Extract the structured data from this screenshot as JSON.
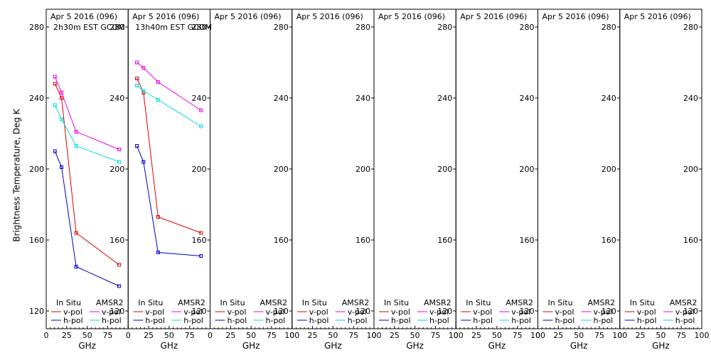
{
  "ylabel": "Brightness Temperature, Deg K",
  "xlabel": "GHz",
  "x_ticks": [
    0,
    25,
    50,
    75,
    100
  ],
  "y_ticks": [
    120,
    160,
    200,
    240,
    280
  ],
  "legend": {
    "insitu_header": "In Situ",
    "amsr2_header": "AMSR2",
    "vpol": "v-pol",
    "hpol": "h-pol",
    "colors": {
      "insitu_v": "#dd0000",
      "insitu_h": "#0000cc",
      "amsr2_v": "#ee00ee",
      "amsr2_h": "#00dddd"
    }
  },
  "chart_data": [
    {
      "type": "line",
      "title": "Apr 5 2016 (096)",
      "subtitle": "2h30m EST GCOM",
      "xlim": [
        0,
        100
      ],
      "ylim": [
        110,
        290
      ],
      "y_tick_labels": [
        "120",
        "160",
        "200",
        "240",
        "280"
      ],
      "x_tick_labels": [
        "0",
        "25",
        "50",
        "75",
        ""
      ],
      "grid": false,
      "x": [
        10.65,
        18.7,
        36.5,
        89.0
      ],
      "series": [
        {
          "name": "In Situ v-pol",
          "key": "insitu_v",
          "values": [
            248,
            240,
            164,
            146
          ]
        },
        {
          "name": "In Situ h-pol",
          "key": "insitu_h",
          "values": [
            210,
            201,
            145,
            134
          ]
        },
        {
          "name": "AMSR2 v-pol",
          "key": "amsr2_v",
          "values": [
            252,
            243,
            221,
            211
          ]
        },
        {
          "name": "AMSR2 h-pol",
          "key": "amsr2_h",
          "values": [
            236,
            228,
            213,
            204
          ]
        }
      ]
    },
    {
      "type": "line",
      "title": "Apr 5 2016 (096)",
      "subtitle": "13h40m EST GCOM",
      "xlim": [
        0,
        100
      ],
      "ylim": [
        110,
        290
      ],
      "y_tick_labels": [
        "120",
        "160",
        "200",
        "240",
        "280"
      ],
      "x_tick_labels": [
        "0",
        "25",
        "50",
        "75",
        ""
      ],
      "grid": false,
      "x": [
        10.65,
        18.7,
        36.5,
        89.0
      ],
      "series": [
        {
          "name": "In Situ v-pol",
          "key": "insitu_v",
          "values": [
            251,
            243,
            173,
            164
          ]
        },
        {
          "name": "In Situ h-pol",
          "key": "insitu_h",
          "values": [
            213,
            204,
            153,
            151
          ]
        },
        {
          "name": "AMSR2 v-pol",
          "key": "amsr2_v",
          "values": [
            260,
            257,
            249,
            233
          ]
        },
        {
          "name": "AMSR2 h-pol",
          "key": "amsr2_h",
          "values": [
            247,
            244,
            239,
            224
          ]
        }
      ]
    },
    {
      "type": "line",
      "title": "Apr 5 2016 (096)",
      "subtitle": "",
      "xlim": [
        0,
        100
      ],
      "ylim": [
        110,
        290
      ],
      "y_tick_labels": [
        "120",
        "160",
        "200",
        "240",
        "280"
      ],
      "x_tick_labels": [
        "0",
        "25",
        "50",
        "75",
        "100"
      ],
      "grid": false,
      "x": [],
      "series": []
    },
    {
      "type": "line",
      "title": "Apr 5 2016 (096)",
      "subtitle": "",
      "xlim": [
        0,
        100
      ],
      "ylim": [
        110,
        290
      ],
      "y_tick_labels": [
        "120",
        "160",
        "200",
        "240",
        "280"
      ],
      "x_tick_labels": [
        "0",
        "25",
        "50",
        "75",
        "100"
      ],
      "grid": false,
      "x": [],
      "series": []
    },
    {
      "type": "line",
      "title": "Apr 5 2016 (096)",
      "subtitle": "",
      "xlim": [
        0,
        100
      ],
      "ylim": [
        110,
        290
      ],
      "y_tick_labels": [
        "120",
        "160",
        "200",
        "240",
        "280"
      ],
      "x_tick_labels": [
        "0",
        "25",
        "50",
        "75",
        "100"
      ],
      "grid": false,
      "x": [],
      "series": []
    },
    {
      "type": "line",
      "title": "Apr 5 2016 (096)",
      "subtitle": "",
      "xlim": [
        0,
        100
      ],
      "ylim": [
        110,
        290
      ],
      "y_tick_labels": [
        "120",
        "160",
        "200",
        "240",
        "280"
      ],
      "x_tick_labels": [
        "0",
        "25",
        "50",
        "75",
        "100"
      ],
      "grid": false,
      "x": [],
      "series": []
    },
    {
      "type": "line",
      "title": "Apr 5 2016 (096)",
      "subtitle": "",
      "xlim": [
        0,
        100
      ],
      "ylim": [
        110,
        290
      ],
      "y_tick_labels": [
        "120",
        "160",
        "200",
        "240",
        "280"
      ],
      "x_tick_labels": [
        "0",
        "25",
        "50",
        "75",
        "100"
      ],
      "grid": false,
      "x": [],
      "series": []
    },
    {
      "type": "line",
      "title": "Apr 5 2016 (096)",
      "subtitle": "",
      "xlim": [
        0,
        100
      ],
      "ylim": [
        110,
        290
      ],
      "y_tick_labels": [
        "120",
        "160",
        "200",
        "240",
        "280"
      ],
      "x_tick_labels": [
        "0",
        "25",
        "50",
        "75",
        "100"
      ],
      "grid": false,
      "x": [],
      "series": []
    }
  ]
}
